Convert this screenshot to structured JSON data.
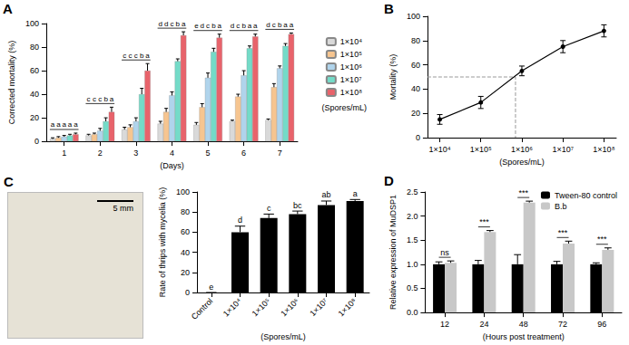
{
  "chart_data": [
    {
      "panel": "A",
      "type": "bar",
      "x_label": "(Days)",
      "y_label": "Corrected mortality (%)",
      "categories": [
        "1",
        "2",
        "3",
        "4",
        "5",
        "6",
        "7"
      ],
      "series": [
        {
          "name": "1×10⁴",
          "color": "#d9d9d9",
          "values": [
            2,
            5,
            10,
            15,
            14,
            17,
            18
          ],
          "errors": [
            1,
            1,
            2,
            2,
            2,
            1,
            1
          ]
        },
        {
          "name": "1×10⁵",
          "color": "#f6c590",
          "values": [
            3,
            6,
            12,
            25,
            29,
            38,
            46
          ],
          "errors": [
            1,
            1,
            2,
            3,
            3,
            2,
            3
          ]
        },
        {
          "name": "1×10⁶",
          "color": "#b0d4ec",
          "values": [
            4,
            9,
            17,
            39,
            54,
            56,
            62
          ],
          "errors": [
            1,
            2,
            3,
            3,
            4,
            4,
            2
          ]
        },
        {
          "name": "1×10⁷",
          "color": "#74dbc8",
          "values": [
            5,
            17,
            40,
            68,
            76,
            79,
            81
          ],
          "errors": [
            1,
            3,
            5,
            2,
            3,
            2,
            2
          ]
        },
        {
          "name": "1×10⁸",
          "color": "#e8636b",
          "values": [
            6,
            25,
            60,
            90,
            88,
            89,
            91
          ],
          "errors": [
            1,
            4,
            6,
            3,
            3,
            2,
            1
          ]
        }
      ],
      "letters": [
        [
          "a",
          "a",
          "a",
          "a",
          "a"
        ],
        [
          "c",
          "c",
          "c",
          "b",
          "a"
        ],
        [
          "c",
          "c",
          "c",
          "b",
          "a"
        ],
        [
          "d",
          "d",
          "c",
          "b",
          "a"
        ],
        [
          "e",
          "d",
          "c",
          "b",
          "a"
        ],
        [
          "d",
          "c",
          "b",
          "a",
          "a"
        ],
        [
          "d",
          "c",
          "b",
          "a",
          "a"
        ]
      ],
      "legend": "right",
      "legend_title": "(Spores/mL)",
      "ylim": [
        0,
        100
      ],
      "yticks": [
        0,
        20,
        40,
        60,
        80,
        100
      ],
      "grid": false
    },
    {
      "panel": "B",
      "type": "line",
      "x_label": "(Spores/mL)",
      "y_label": "Mortality (%)",
      "log": "x",
      "x": [
        10000,
        100000,
        1000000,
        10000000,
        100000000
      ],
      "values": [
        15,
        29,
        55,
        75,
        88
      ],
      "errors": [
        4,
        5,
        4,
        5,
        5
      ],
      "color": "#000000",
      "marker": "circle",
      "reference": {
        "x": 700000,
        "y": 50
      },
      "xlim": [
        5000,
        200000000
      ],
      "xticks": [
        {
          "value": 10000,
          "label": "1×10⁴"
        },
        {
          "value": 100000,
          "label": "1×10⁵"
        },
        {
          "value": 1000000,
          "label": "1×10⁶"
        },
        {
          "value": 10000000,
          "label": "1×10⁷"
        },
        {
          "value": 100000000,
          "label": "1×10⁸"
        }
      ],
      "ylim": [
        0,
        100
      ],
      "yticks": [
        0,
        20,
        40,
        60,
        80,
        100
      ],
      "grid": false
    },
    {
      "panel": "C",
      "type": "bar",
      "x_label": "(Spores/mL)",
      "y_label": "Rate of thrips with mycelia (%)",
      "scale_bar_label": "5 mm",
      "categories": [
        "Control",
        "1×10⁴",
        "1×10⁵",
        "1×10⁶",
        "1×10⁷",
        "1×10⁸"
      ],
      "values": [
        0,
        60,
        74,
        78,
        87,
        91
      ],
      "errors": [
        0,
        6,
        4,
        3,
        4,
        1.5
      ],
      "letters": [
        "e",
        "d",
        "c",
        "bc",
        "ab",
        "a"
      ],
      "color": "#000000",
      "ylim": [
        0,
        100
      ],
      "yticks": [
        0,
        20,
        40,
        60,
        80,
        100
      ],
      "grid": false
    },
    {
      "panel": "D",
      "type": "bar",
      "x_label": "(Hours post treatment)",
      "y_label": "Relative expression of MuDSP1",
      "categories": [
        "12",
        "24",
        "48",
        "72",
        "96"
      ],
      "series": [
        {
          "name": "Tween-80 control",
          "color": "#000000",
          "values": [
            1,
            1,
            1,
            1,
            1
          ],
          "errors": [
            0.05,
            0.08,
            0.2,
            0.06,
            0.03
          ]
        },
        {
          "name": "B.b",
          "color": "#c8c8c8",
          "values": [
            1.03,
            1.67,
            2.28,
            1.43,
            1.3
          ],
          "errors": [
            0.04,
            0.03,
            0.03,
            0.05,
            0.04
          ]
        }
      ],
      "significance": [
        "ns",
        "***",
        "***",
        "***",
        "***"
      ],
      "legend": "top-right",
      "ylim": [
        0,
        2.5
      ],
      "yticks": [
        {
          "value": 0,
          "label": "0.0"
        },
        0.5,
        {
          "value": 1,
          "label": "1.0"
        },
        1.5,
        {
          "value": 2,
          "label": "2.0"
        },
        2.5
      ],
      "grid": false
    }
  ]
}
